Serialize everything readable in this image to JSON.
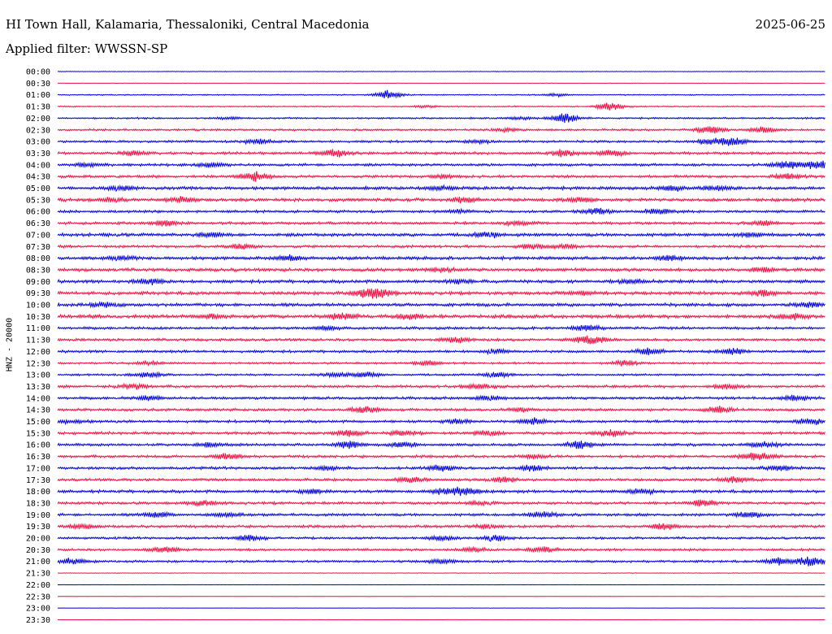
{
  "header": {
    "station": "HI Town Hall, Kalamaria, Thessaloniki, Central Macedonia",
    "date": "2025-06-25",
    "filter": "Applied filter: WWSSN-SP"
  },
  "chart_data": {
    "type": "line",
    "title": "HI Town Hall, Kalamaria, Thessaloniki, Central Macedonia",
    "ylabel": "HNZ - 20000",
    "colors": [
      "#0000dd",
      "#ee1144"
    ],
    "rows": [
      {
        "label": "00:00",
        "amp": 0.4,
        "events": []
      },
      {
        "label": "00:30",
        "amp": 0.3,
        "events": []
      },
      {
        "label": "01:00",
        "amp": 0.8,
        "events": [
          [
            0.43,
            6
          ],
          [
            0.65,
            2
          ]
        ]
      },
      {
        "label": "01:30",
        "amp": 0.8,
        "events": [
          [
            0.72,
            6
          ],
          [
            0.48,
            1.5
          ]
        ]
      },
      {
        "label": "02:00",
        "amp": 1.2,
        "events": [
          [
            0.66,
            6
          ],
          [
            0.22,
            1.5
          ],
          [
            0.6,
            1.5
          ]
        ]
      },
      {
        "label": "02:30",
        "amp": 1.4,
        "events": [
          [
            0.85,
            5
          ],
          [
            0.92,
            4
          ],
          [
            0.58,
            2
          ]
        ]
      },
      {
        "label": "03:00",
        "amp": 1.6,
        "events": [
          [
            0.26,
            3
          ],
          [
            0.85,
            4
          ],
          [
            0.88,
            5
          ],
          [
            0.55,
            2
          ]
        ]
      },
      {
        "label": "03:30",
        "amp": 1.8,
        "events": [
          [
            0.36,
            5
          ],
          [
            0.66,
            4
          ],
          [
            0.72,
            4
          ],
          [
            0.1,
            2.5
          ]
        ]
      },
      {
        "label": "04:00",
        "amp": 1.8,
        "events": [
          [
            0.2,
            3
          ],
          [
            0.95,
            5
          ],
          [
            0.99,
            6
          ],
          [
            0.04,
            2.5
          ]
        ]
      },
      {
        "label": "04:30",
        "amp": 1.8,
        "events": [
          [
            0.26,
            4
          ],
          [
            0.25,
            3
          ],
          [
            0.95,
            3.5
          ],
          [
            0.5,
            2
          ]
        ]
      },
      {
        "label": "05:00",
        "amp": 2.2,
        "events": [
          [
            0.08,
            3
          ],
          [
            0.8,
            3
          ],
          [
            0.86,
            3
          ],
          [
            0.5,
            2
          ]
        ]
      },
      {
        "label": "05:30",
        "amp": 2.2,
        "events": [
          [
            0.07,
            2.5
          ],
          [
            0.16,
            3
          ],
          [
            0.53,
            3
          ],
          [
            0.68,
            2.5
          ]
        ]
      },
      {
        "label": "06:00",
        "amp": 1.8,
        "events": [
          [
            0.7,
            4
          ],
          [
            0.78,
            3.5
          ],
          [
            0.52,
            2
          ]
        ]
      },
      {
        "label": "06:30",
        "amp": 1.8,
        "events": [
          [
            0.14,
            3.5
          ],
          [
            0.6,
            2.5
          ],
          [
            0.92,
            3
          ]
        ]
      },
      {
        "label": "07:00",
        "amp": 2.2,
        "events": [
          [
            0.2,
            3
          ],
          [
            0.56,
            3
          ],
          [
            0.9,
            2.5
          ]
        ]
      },
      {
        "label": "07:30",
        "amp": 1.8,
        "events": [
          [
            0.24,
            3
          ],
          [
            0.62,
            3
          ],
          [
            0.66,
            2.5
          ]
        ]
      },
      {
        "label": "08:00",
        "amp": 2.2,
        "events": [
          [
            0.3,
            3
          ],
          [
            0.8,
            3
          ],
          [
            0.08,
            2.5
          ]
        ]
      },
      {
        "label": "08:30",
        "amp": 2.2,
        "events": [
          [
            0.92,
            3
          ],
          [
            0.5,
            2
          ]
        ]
      },
      {
        "label": "09:00",
        "amp": 2.2,
        "events": [
          [
            0.12,
            3
          ],
          [
            0.52,
            2.5
          ],
          [
            0.75,
            2.5
          ]
        ]
      },
      {
        "label": "09:30",
        "amp": 2.2,
        "events": [
          [
            0.4,
            4
          ],
          [
            0.42,
            5
          ],
          [
            0.92,
            4
          ],
          [
            0.68,
            2.5
          ]
        ]
      },
      {
        "label": "10:00",
        "amp": 2.2,
        "events": [
          [
            0.06,
            2.5
          ],
          [
            0.98,
            3
          ]
        ]
      },
      {
        "label": "10:30",
        "amp": 2.4,
        "events": [
          [
            0.37,
            4
          ],
          [
            0.46,
            3.5
          ],
          [
            0.96,
            3.5
          ],
          [
            0.2,
            2.5
          ]
        ]
      },
      {
        "label": "11:00",
        "amp": 1.8,
        "events": [
          [
            0.69,
            3.5
          ],
          [
            0.35,
            2
          ]
        ]
      },
      {
        "label": "11:30",
        "amp": 1.8,
        "events": [
          [
            0.52,
            3.5
          ],
          [
            0.7,
            4
          ],
          [
            0.68,
            2.5
          ]
        ]
      },
      {
        "label": "12:00",
        "amp": 1.8,
        "events": [
          [
            0.77,
            4
          ],
          [
            0.88,
            4
          ],
          [
            0.57,
            2.5
          ]
        ]
      },
      {
        "label": "12:30",
        "amp": 1.4,
        "events": [
          [
            0.48,
            3
          ],
          [
            0.74,
            3.5
          ],
          [
            0.12,
            2
          ]
        ]
      },
      {
        "label": "13:00",
        "amp": 1.4,
        "events": [
          [
            0.4,
            4
          ],
          [
            0.57,
            4
          ],
          [
            0.12,
            3
          ],
          [
            0.36,
            2.5
          ]
        ]
      },
      {
        "label": "13:30",
        "amp": 1.8,
        "events": [
          [
            0.1,
            3
          ],
          [
            0.55,
            3.5
          ],
          [
            0.87,
            3
          ]
        ]
      },
      {
        "label": "14:00",
        "amp": 1.8,
        "events": [
          [
            0.56,
            3.5
          ],
          [
            0.96,
            3.5
          ],
          [
            0.12,
            3
          ]
        ]
      },
      {
        "label": "14:30",
        "amp": 1.8,
        "events": [
          [
            0.4,
            4
          ],
          [
            0.86,
            4
          ],
          [
            0.6,
            2
          ]
        ]
      },
      {
        "label": "15:00",
        "amp": 1.8,
        "events": [
          [
            0.62,
            4
          ],
          [
            0.98,
            4
          ],
          [
            0.52,
            3
          ],
          [
            0.02,
            2
          ]
        ]
      },
      {
        "label": "15:30",
        "amp": 1.8,
        "events": [
          [
            0.38,
            4
          ],
          [
            0.72,
            4
          ],
          [
            0.45,
            3
          ],
          [
            0.56,
            3
          ]
        ]
      },
      {
        "label": "16:00",
        "amp": 1.8,
        "events": [
          [
            0.38,
            5
          ],
          [
            0.68,
            5
          ],
          [
            0.92,
            4
          ],
          [
            0.2,
            3
          ],
          [
            0.45,
            3
          ]
        ]
      },
      {
        "label": "16:30",
        "amp": 1.8,
        "events": [
          [
            0.22,
            4
          ],
          [
            0.9,
            3.5
          ],
          [
            0.92,
            3.5
          ],
          [
            0.62,
            2
          ]
        ]
      },
      {
        "label": "17:00",
        "amp": 1.8,
        "events": [
          [
            0.5,
            3.5
          ],
          [
            0.62,
            3.5
          ],
          [
            0.94,
            3.5
          ],
          [
            0.35,
            2
          ]
        ]
      },
      {
        "label": "17:30",
        "amp": 1.8,
        "events": [
          [
            0.46,
            3.5
          ],
          [
            0.58,
            3.5
          ],
          [
            0.88,
            3.5
          ]
        ]
      },
      {
        "label": "18:00",
        "amp": 2.0,
        "events": [
          [
            0.53,
            6
          ],
          [
            0.5,
            3
          ],
          [
            0.76,
            3
          ],
          [
            0.33,
            2.5
          ]
        ]
      },
      {
        "label": "18:30",
        "amp": 1.8,
        "events": [
          [
            0.19,
            3.5
          ],
          [
            0.84,
            3.5
          ],
          [
            0.55,
            2
          ]
        ]
      },
      {
        "label": "19:00",
        "amp": 1.8,
        "events": [
          [
            0.63,
            4
          ],
          [
            0.9,
            4
          ],
          [
            0.13,
            3.5
          ],
          [
            0.22,
            3
          ]
        ]
      },
      {
        "label": "19:30",
        "amp": 1.8,
        "events": [
          [
            0.79,
            4
          ],
          [
            0.03,
            3
          ],
          [
            0.56,
            3
          ]
        ]
      },
      {
        "label": "20:00",
        "amp": 1.6,
        "events": [
          [
            0.25,
            3.5
          ],
          [
            0.57,
            4
          ],
          [
            0.5,
            3
          ]
        ]
      },
      {
        "label": "20:30",
        "amp": 1.6,
        "events": [
          [
            0.14,
            3.5
          ],
          [
            0.63,
            4
          ],
          [
            0.54,
            3
          ]
        ]
      },
      {
        "label": "21:00",
        "amp": 1.6,
        "events": [
          [
            0.02,
            3.5
          ],
          [
            0.94,
            5
          ],
          [
            0.98,
            6
          ],
          [
            0.5,
            3
          ]
        ]
      },
      {
        "label": "21:30",
        "amp": 0.4,
        "events": []
      },
      {
        "label": "22:00",
        "amp": 0.2,
        "events": []
      },
      {
        "label": "22:30",
        "amp": 0.2,
        "events": []
      },
      {
        "label": "23:00",
        "amp": 0.2,
        "events": []
      },
      {
        "label": "23:30",
        "amp": 0.2,
        "events": []
      }
    ]
  }
}
